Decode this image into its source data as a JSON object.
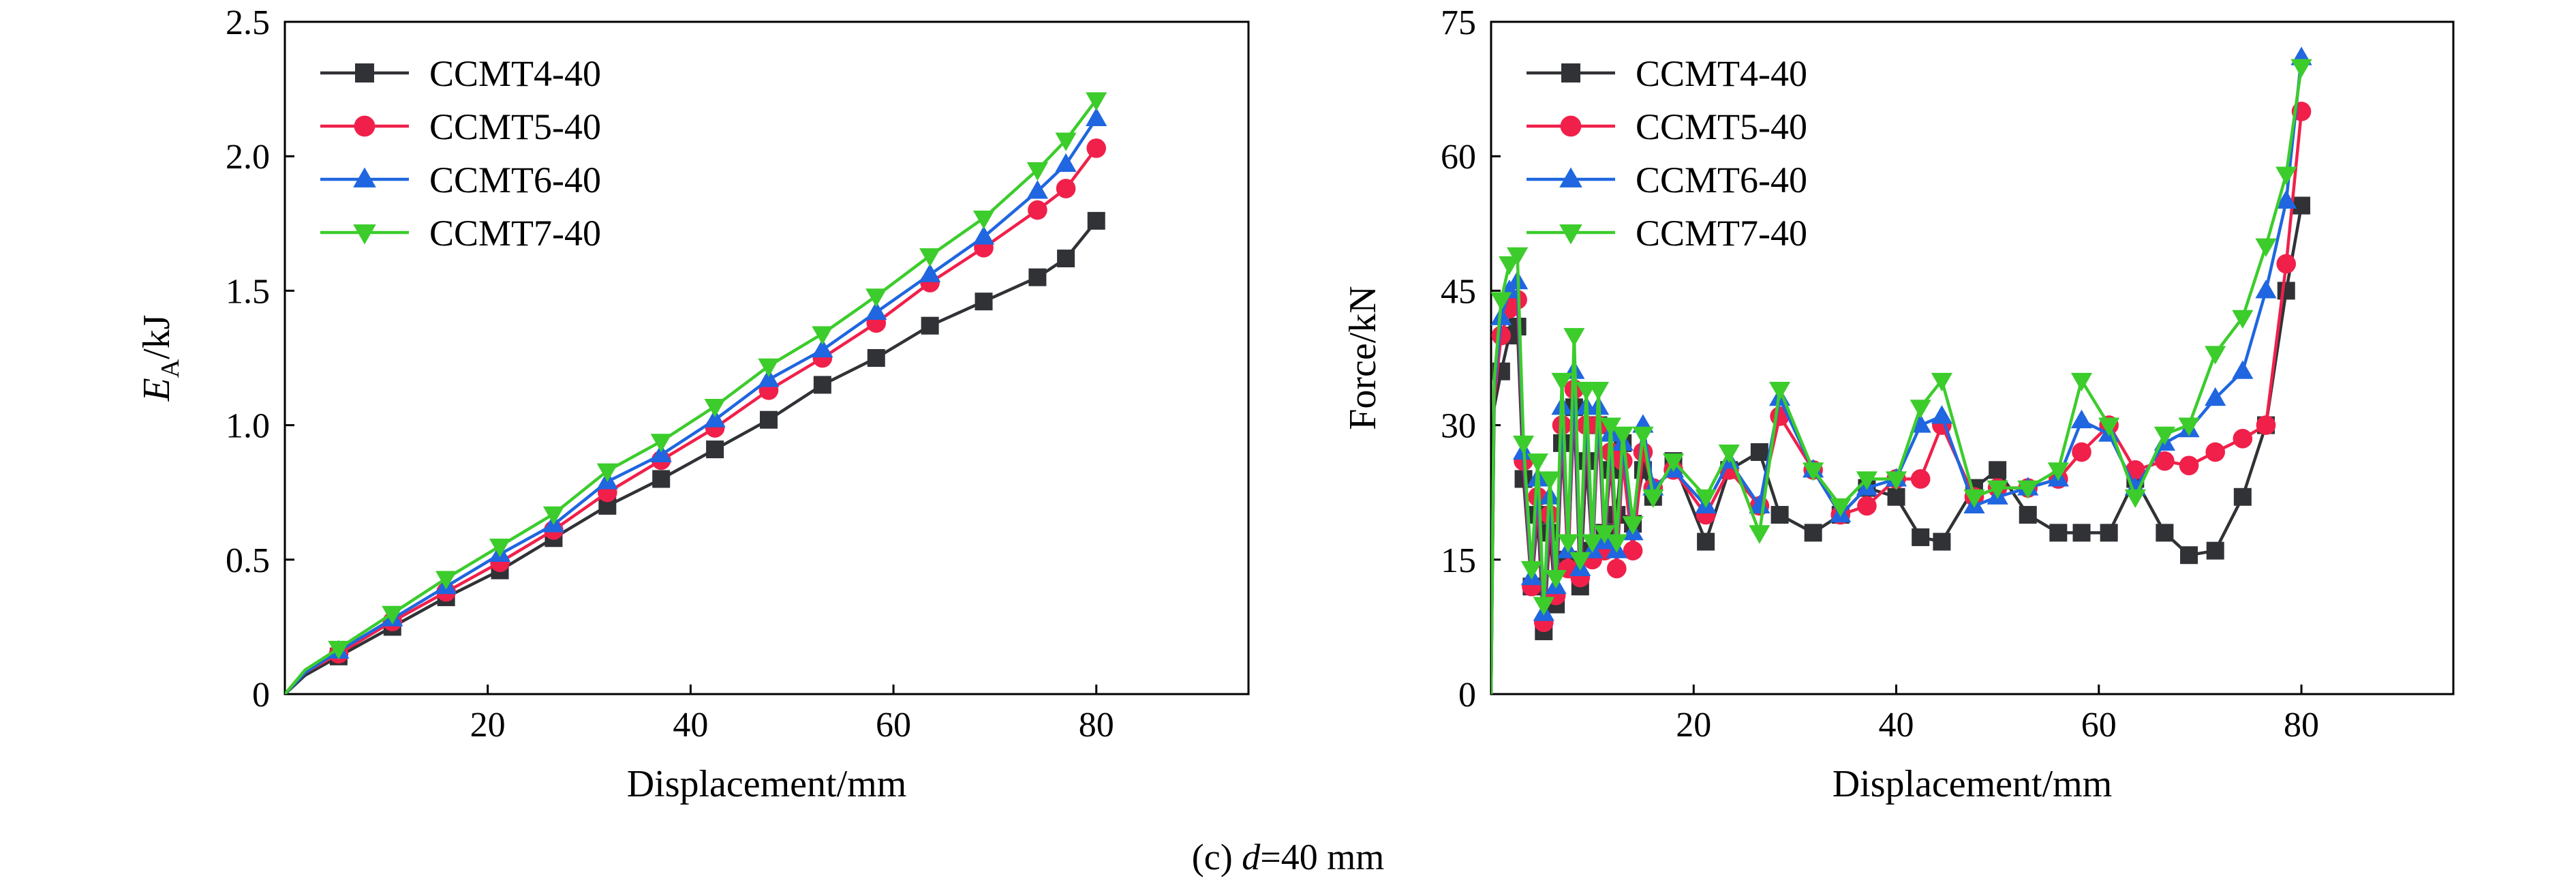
{
  "caption": {
    "prefix": "(c) ",
    "var": "d",
    "suffix": "=40 mm"
  },
  "colors": {
    "CCMT4-40": "#303236",
    "CCMT5-40": "#f0204a",
    "CCMT6-40": "#1f66e0",
    "CCMT7-40": "#3ccc2c"
  },
  "chart_data": [
    {
      "id": "energy",
      "type": "line",
      "title": "",
      "xlabel": "Displacement/mm",
      "ylabel_main": "E",
      "ylabel_sub": "A",
      "ylabel_rest": "/kJ",
      "xlim": [
        0,
        95
      ],
      "ylim": [
        0,
        2.5
      ],
      "xticks": [
        20,
        40,
        60,
        80
      ],
      "yticks": [
        0,
        0.5,
        1.0,
        1.5,
        2.0,
        2.5
      ],
      "ytick_labels": [
        "0",
        "0.5",
        "1.0",
        "1.5",
        "2.0",
        "2.5"
      ],
      "legend_position": "top-left",
      "grid": false,
      "series": [
        {
          "name": "CCMT4-40",
          "marker": "square",
          "x": [
            0,
            2,
            5.3,
            10.6,
            15.9,
            21.2,
            26.5,
            31.8,
            37.1,
            42.4,
            47.7,
            53.0,
            58.3,
            63.6,
            68.9,
            74.2,
            77,
            80
          ],
          "y": [
            0,
            0.07,
            0.14,
            0.25,
            0.36,
            0.46,
            0.58,
            0.7,
            0.8,
            0.91,
            1.02,
            1.15,
            1.25,
            1.37,
            1.46,
            1.55,
            1.62,
            1.76
          ]
        },
        {
          "name": "CCMT5-40",
          "marker": "circle",
          "x": [
            0,
            2,
            5.3,
            10.6,
            15.9,
            21.2,
            26.5,
            31.8,
            37.1,
            42.4,
            47.7,
            53.0,
            58.3,
            63.6,
            68.9,
            74.2,
            77,
            80
          ],
          "y": [
            0,
            0.08,
            0.15,
            0.27,
            0.38,
            0.49,
            0.61,
            0.75,
            0.87,
            0.99,
            1.13,
            1.25,
            1.38,
            1.53,
            1.66,
            1.8,
            1.88,
            2.03
          ]
        },
        {
          "name": "CCMT6-40",
          "marker": "triangle-up",
          "x": [
            0,
            2,
            5.3,
            10.6,
            15.9,
            21.2,
            26.5,
            31.8,
            37.1,
            42.4,
            47.7,
            53.0,
            58.3,
            63.6,
            68.9,
            74.2,
            77,
            80
          ],
          "y": [
            0,
            0.08,
            0.16,
            0.28,
            0.4,
            0.52,
            0.63,
            0.79,
            0.89,
            1.02,
            1.17,
            1.28,
            1.42,
            1.56,
            1.7,
            1.87,
            1.97,
            2.14
          ]
        },
        {
          "name": "CCMT7-40",
          "marker": "triangle-down",
          "x": [
            0,
            2,
            5.3,
            10.6,
            15.9,
            21.2,
            26.5,
            31.8,
            37.1,
            42.4,
            47.7,
            53.0,
            58.3,
            63.6,
            68.9,
            74.2,
            77,
            80
          ],
          "y": [
            0,
            0.09,
            0.17,
            0.3,
            0.43,
            0.55,
            0.67,
            0.83,
            0.94,
            1.07,
            1.22,
            1.34,
            1.48,
            1.63,
            1.77,
            1.95,
            2.06,
            2.21
          ]
        }
      ]
    },
    {
      "id": "force",
      "type": "line",
      "title": "",
      "xlabel": "Displacement/mm",
      "ylabel": "Force/kN",
      "xlim": [
        0,
        95
      ],
      "ylim": [
        0,
        75
      ],
      "xticks": [
        20,
        40,
        60,
        80
      ],
      "yticks": [
        0,
        15,
        30,
        45,
        60,
        75
      ],
      "ytick_labels": [
        "0",
        "15",
        "30",
        "45",
        "60",
        "75"
      ],
      "legend_position": "top-left",
      "grid": false,
      "series": [
        {
          "name": "CCMT4-40",
          "marker": "square",
          "x": [
            0,
            0.3,
            1.0,
            1.8,
            2.6,
            3.2,
            4.0,
            4.6,
            5.2,
            5.8,
            6.4,
            7.0,
            7.6,
            8.2,
            8.8,
            9.4,
            10.0,
            10.6,
            11.2,
            11.8,
            12.4,
            13.0,
            14.0,
            15.0,
            16.0,
            18.0,
            21.2,
            23.5,
            26.5,
            28.5,
            31.8,
            34.5,
            37.1,
            40.0,
            42.4,
            44.5,
            47.7,
            50.0,
            53.0,
            56.0,
            58.3,
            61.0,
            63.6,
            66.5,
            68.9,
            71.5,
            74.2,
            76.5,
            78.5,
            80
          ],
          "y": [
            0,
            32,
            36,
            40,
            41,
            24,
            12,
            20,
            7,
            18,
            10,
            28,
            15,
            32,
            12,
            26,
            16,
            30,
            18,
            25,
            20,
            28,
            19,
            25,
            22,
            26,
            17,
            25,
            27,
            20,
            18,
            20,
            23,
            22,
            17.5,
            17,
            23,
            25,
            20,
            18,
            18,
            18,
            24,
            18,
            15.5,
            16,
            22,
            30,
            45,
            54.5
          ]
        },
        {
          "name": "CCMT5-40",
          "marker": "circle",
          "x": [
            0,
            0.3,
            1.0,
            1.8,
            2.6,
            3.2,
            4.0,
            4.6,
            5.2,
            5.8,
            6.4,
            7.0,
            7.6,
            8.2,
            8.8,
            9.4,
            10.0,
            10.6,
            11.2,
            11.8,
            12.4,
            13.0,
            14.0,
            15.0,
            16.0,
            18.0,
            21.2,
            23.5,
            26.5,
            28.5,
            31.8,
            34.5,
            37.1,
            40.0,
            42.4,
            44.5,
            47.7,
            50.0,
            53.0,
            56.0,
            58.3,
            61.0,
            63.6,
            66.5,
            68.9,
            71.5,
            74.2,
            76.5,
            78.5,
            80
          ],
          "y": [
            0,
            33,
            40,
            43,
            44,
            26,
            12,
            22,
            8,
            20,
            11,
            30,
            14,
            34,
            13,
            30,
            15,
            30,
            16,
            27,
            14,
            26,
            16,
            27,
            23,
            25,
            20,
            25,
            21,
            31,
            25,
            20,
            21,
            24,
            24,
            30,
            22,
            23,
            23,
            24,
            27,
            30,
            25,
            26,
            25.5,
            27,
            28.5,
            30,
            48,
            65
          ]
        },
        {
          "name": "CCMT6-40",
          "marker": "triangle-up",
          "x": [
            0,
            0.3,
            1.0,
            1.8,
            2.6,
            3.2,
            4.0,
            4.6,
            5.2,
            5.8,
            6.4,
            7.0,
            7.6,
            8.2,
            8.8,
            9.4,
            10.0,
            10.6,
            11.2,
            11.8,
            12.4,
            13.0,
            14.0,
            15.0,
            16.0,
            18.0,
            21.2,
            23.5,
            26.5,
            28.5,
            31.8,
            34.5,
            37.1,
            40.0,
            42.4,
            44.5,
            47.7,
            50.0,
            53.0,
            56.0,
            58.3,
            61.0,
            63.6,
            66.5,
            68.9,
            71.5,
            74.2,
            76.5,
            78.5,
            80
          ],
          "y": [
            0,
            34,
            42,
            45,
            46,
            27,
            13,
            24,
            9,
            22,
            12,
            32,
            16,
            36,
            14,
            32,
            16,
            32,
            17,
            29,
            16,
            28,
            18,
            30,
            23,
            25,
            21,
            26,
            21,
            33,
            25,
            20,
            23,
            24,
            30,
            31,
            21,
            22,
            23,
            24,
            30.5,
            29,
            23,
            28,
            29.5,
            33,
            36,
            45,
            55,
            71
          ]
        },
        {
          "name": "CCMT7-40",
          "marker": "triangle-down",
          "x": [
            0,
            0.3,
            1.0,
            1.8,
            2.6,
            3.2,
            4.0,
            4.6,
            5.2,
            5.8,
            6.4,
            7.0,
            7.6,
            8.2,
            8.8,
            9.4,
            10.0,
            10.6,
            11.2,
            11.8,
            12.4,
            13.0,
            14.0,
            15.0,
            16.0,
            18.0,
            21.2,
            23.5,
            26.5,
            28.5,
            31.8,
            34.5,
            37.1,
            40.0,
            42.4,
            44.5,
            47.7,
            50.0,
            53.0,
            56.0,
            58.3,
            61.0,
            63.6,
            66.5,
            68.9,
            71.5,
            74.2,
            76.5,
            78.5,
            80
          ],
          "y": [
            0,
            35,
            44,
            48,
            49,
            28,
            14,
            26,
            10,
            24,
            13,
            35,
            17,
            40,
            15,
            34,
            17,
            34,
            18,
            30,
            17,
            29,
            19,
            29,
            22,
            26,
            22,
            27,
            18,
            34,
            25,
            21,
            24,
            24,
            32,
            35,
            22,
            23,
            23,
            25,
            35,
            30,
            22,
            29,
            30,
            38,
            42,
            50,
            58,
            70
          ]
        }
      ]
    }
  ]
}
